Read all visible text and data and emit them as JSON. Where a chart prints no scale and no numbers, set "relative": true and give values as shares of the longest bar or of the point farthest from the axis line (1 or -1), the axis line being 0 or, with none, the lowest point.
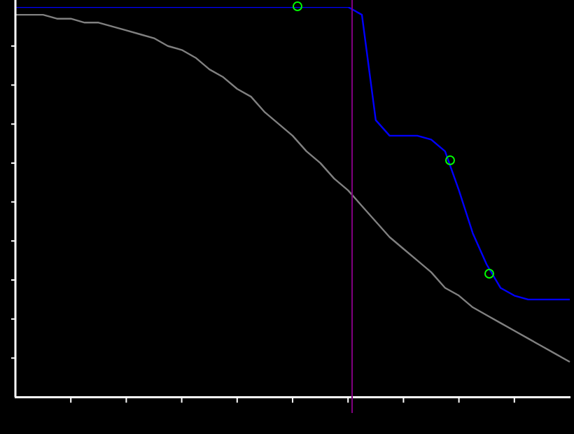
{
  "chart_data": {
    "type": "line",
    "relative": true,
    "categories": [
      null,
      null,
      null,
      null,
      null,
      null,
      null,
      null,
      null,
      null,
      null,
      null,
      null,
      null,
      null,
      null,
      null,
      null,
      null,
      null,
      null,
      null,
      null,
      null,
      null,
      null,
      null,
      null,
      null,
      null,
      null,
      null,
      null,
      null,
      null,
      null,
      null,
      null,
      null,
      null,
      null
    ],
    "series": [
      {
        "color": "#808080",
        "values": [
          0.98,
          0.98,
          0.98,
          0.97,
          0.97,
          0.96,
          0.96,
          0.95,
          0.94,
          0.93,
          0.92,
          0.9,
          0.89,
          0.87,
          0.84,
          0.82,
          0.79,
          0.77,
          0.73,
          0.7,
          0.67,
          0.63,
          0.6,
          0.56,
          0.53,
          0.49,
          0.45,
          0.41,
          0.38,
          0.35,
          0.32,
          0.28,
          0.26,
          0.23,
          0.21,
          0.19,
          0.17,
          0.15,
          0.13,
          0.11,
          0.09
        ]
      },
      {
        "color": "#0000ff",
        "values": [
          1,
          1,
          1,
          1,
          1,
          1,
          1,
          1,
          1,
          1,
          1,
          1,
          1,
          1,
          1,
          1,
          1,
          1,
          1,
          1,
          1,
          1,
          1,
          1,
          1,
          0.98,
          0.71,
          0.67,
          0.67,
          0.67,
          0.66,
          0.63,
          0.53,
          0.42,
          0.34,
          0.28,
          0.26,
          0.25,
          0.25,
          0.25,
          0.25
        ]
      }
    ],
    "grid": false,
    "legend": false
  }
}
